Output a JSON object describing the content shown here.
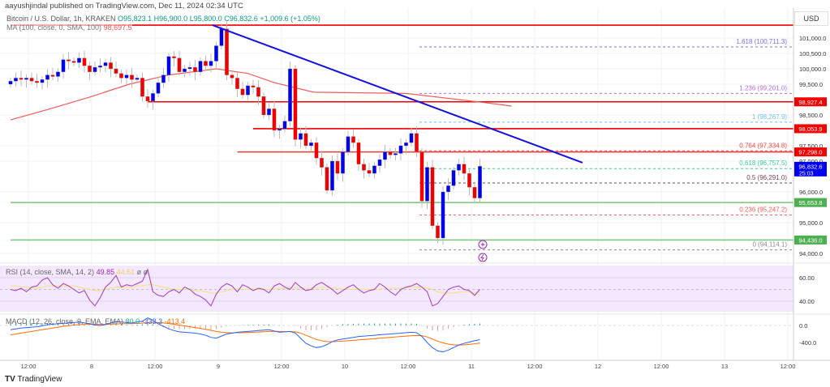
{
  "header": {
    "published": "aayushjindal published on TradingView.com, Dec 11, 2024 02:34 UTC"
  },
  "legend": {
    "symbol": "Bitcoin / U.S. Dollar, 1h, KRAKEN",
    "open": "O95,823.1",
    "high": "H96,900.0",
    "low": "L95,800.0",
    "close": "C96,832.6",
    "change": "+1,009.6 (+1.05%)",
    "ma_label": "MA (100, close, 0, SMA, 100)",
    "ma_value": "98,697.5"
  },
  "price_axis": {
    "currency": "USD",
    "ticks": [
      "101,000.0",
      "100,500.0",
      "100,000.0",
      "99,500.0",
      "98,500.0",
      "97,500.0",
      "97,000.0",
      "96,000.0",
      "95,000.0",
      "94,000.0"
    ],
    "tick_values": [
      101000,
      100500,
      100000,
      99500,
      98500,
      97500,
      97000,
      96000,
      95000,
      94000
    ],
    "tags": [
      {
        "text": "98,927.4",
        "value": 98927.4,
        "color": "#f20000"
      },
      {
        "text": "98,053.9",
        "value": 98053.9,
        "color": "#f20000"
      },
      {
        "text": "97,298.0",
        "value": 97298.0,
        "color": "#f20000"
      },
      {
        "text": "96,832.6",
        "value": 96832.6,
        "color": "#0000f0",
        "sub": "25:03"
      },
      {
        "text": "95,653.8",
        "value": 95653.8,
        "color": "#4caf50"
      },
      {
        "text": "94,436.0",
        "value": 94436.0,
        "color": "#4caf50"
      }
    ]
  },
  "fib_levels": [
    {
      "text": "1.618 (100,711.3)",
      "value": 100711.3,
      "color": "#7b6fe0"
    },
    {
      "text": "1.236 (99,201.0)",
      "value": 99201.0,
      "color": "#b36be0"
    },
    {
      "text": "1 (98,267.9)",
      "value": 98267.9,
      "color": "#6fbfe8"
    },
    {
      "text": "0.764 (97,334.8)",
      "value": 97334.8,
      "color": "#f04545"
    },
    {
      "text": "0.618 (96,757.5)",
      "value": 96757.5,
      "color": "#2fcf96"
    },
    {
      "text": "0.5 (96,291.0)",
      "value": 96291.0,
      "color": "#7a4556"
    },
    {
      "text": "0.236 (95,247.2)",
      "value": 95247.2,
      "color": "#f05a5a"
    },
    {
      "text": "0 (94,114.1)",
      "value": 94114.1,
      "color": "#888888"
    }
  ],
  "time_axis": [
    "12:00",
    "8",
    "12:00",
    "9",
    "12:00",
    "10",
    "12:00",
    "11",
    "12:00",
    "12",
    "12:00",
    "13",
    "12:00"
  ],
  "rsi": {
    "label": "RSI (14, close, SMA, 14, 2)",
    "value": "49.85",
    "sma": "44.61",
    "extra": "ø ø",
    "ticks": [
      "60.00",
      "40.00"
    ],
    "values": [
      50,
      49,
      51,
      48,
      52,
      53,
      58,
      60,
      54,
      51,
      55,
      53,
      50,
      47,
      49,
      41,
      36,
      43,
      52,
      56,
      62,
      52,
      54,
      53,
      55,
      57,
      67,
      48,
      45,
      44,
      48,
      50,
      47,
      52,
      50,
      46,
      44,
      41,
      36,
      46,
      52,
      55,
      53,
      48,
      54,
      52,
      49,
      51,
      50,
      47,
      53,
      55,
      52,
      50,
      56,
      52,
      49,
      50,
      54,
      56,
      53,
      50,
      46,
      49,
      52,
      54,
      50,
      47,
      49,
      50,
      55,
      52,
      48,
      45,
      50,
      52,
      53,
      55,
      52,
      48,
      36,
      38,
      44,
      50,
      52,
      53,
      50,
      49,
      45,
      50
    ],
    "sma_values": [
      53,
      53,
      52,
      52,
      51,
      51,
      52,
      53,
      53,
      53,
      53,
      53,
      53,
      52,
      51,
      50,
      49,
      49,
      50,
      51,
      52,
      52,
      52,
      52,
      53,
      53,
      54,
      54,
      53,
      52,
      51,
      50,
      50,
      50,
      50,
      49,
      49,
      48,
      47,
      47,
      48,
      49,
      50,
      50,
      50,
      50,
      50,
      50,
      50,
      50,
      50,
      51,
      51,
      51,
      51,
      51,
      51,
      51,
      51,
      52,
      52,
      51,
      51,
      50,
      50,
      50,
      50,
      50,
      50,
      50,
      50,
      51,
      51,
      51,
      51,
      51,
      52,
      52,
      52,
      51,
      50,
      48,
      47,
      47,
      47,
      48,
      48,
      48,
      47,
      45
    ]
  },
  "macd": {
    "label": "MACD (12, 26, close, 9, EMA, EMA)",
    "hist": "80.0",
    "macd": "-333.3",
    "signal": "-413.4",
    "ticks": [
      "0.0",
      "-400.0"
    ],
    "macd_values": [
      -100,
      -80,
      -60,
      -50,
      -40,
      -30,
      -10,
      20,
      30,
      40,
      50,
      60,
      70,
      80,
      60,
      40,
      10,
      0,
      20,
      60,
      90,
      80,
      70,
      60,
      80,
      100,
      180,
      120,
      40,
      -20,
      -80,
      -120,
      -150,
      -160,
      -170,
      -180,
      -200,
      -230,
      -280,
      -300,
      -250,
      -200,
      -180,
      -160,
      -150,
      -140,
      -130,
      -120,
      -110,
      -100,
      -130,
      -160,
      -150,
      -140,
      -180,
      -300,
      -420,
      -480,
      -520,
      -500,
      -450,
      -380,
      -340,
      -320,
      -300,
      -280,
      -260,
      -250,
      -240,
      -230,
      -220,
      -210,
      -200,
      -190,
      -180,
      -170,
      -160,
      -170,
      -260,
      -400,
      -520,
      -600,
      -620,
      -580,
      -520,
      -460,
      -420,
      -390,
      -360,
      -333
    ],
    "signal_values": [
      -220,
      -200,
      -180,
      -160,
      -140,
      -120,
      -100,
      -80,
      -60,
      -40,
      -20,
      -5,
      10,
      20,
      25,
      28,
      28,
      26,
      26,
      30,
      35,
      40,
      42,
      44,
      48,
      55,
      70,
      75,
      70,
      60,
      45,
      28,
      10,
      -10,
      -30,
      -50,
      -70,
      -90,
      -115,
      -140,
      -160,
      -170,
      -172,
      -172,
      -170,
      -165,
      -160,
      -155,
      -148,
      -140,
      -138,
      -140,
      -142,
      -142,
      -150,
      -180,
      -230,
      -280,
      -330,
      -360,
      -380,
      -380,
      -375,
      -368,
      -360,
      -350,
      -340,
      -330,
      -320,
      -310,
      -300,
      -290,
      -280,
      -270,
      -260,
      -250,
      -240,
      -235,
      -240,
      -270,
      -320,
      -370,
      -410,
      -440,
      -455,
      -460,
      -455,
      -445,
      -430,
      -413
    ]
  },
  "branding": {
    "logo": "TV",
    "name": "TradingView"
  },
  "chart_data": {
    "type": "candlestick",
    "title": "Bitcoin / U.S. Dollar, 1h, KRAKEN",
    "ylim": [
      93800,
      101600
    ],
    "closes": [
      99600,
      99700,
      99650,
      99700,
      99600,
      99550,
      99650,
      99800,
      99750,
      99900,
      100300,
      100250,
      100200,
      100350,
      100100,
      99900,
      100050,
      100100,
      100200,
      100000,
      99850,
      99700,
      99800,
      99650,
      99700,
      99100,
      98950,
      99200,
      99550,
      99800,
      100400,
      100350,
      99900,
      100000,
      100050,
      99900,
      100250,
      100100,
      100250,
      100750,
      101300,
      99800,
      99700,
      99350,
      99150,
      99450,
      99400,
      99100,
      98500,
      98700,
      98000,
      98050,
      98300,
      100000,
      97700,
      97900,
      97500,
      97600,
      97100,
      96800,
      96050,
      97000,
      96600,
      97300,
      97800,
      97600,
      96900,
      96700,
      96600,
      96850,
      97050,
      97300,
      97200,
      97250,
      97500,
      97600,
      97900,
      97300,
      95700,
      96800,
      94900,
      94500,
      96000,
      96200,
      96700,
      96900,
      96600,
      96150,
      95800,
      96832.6
    ],
    "first_open": 99500,
    "ma100": [
      [
        0,
        98340
      ],
      [
        15,
        98700
      ],
      [
        30,
        99080
      ],
      [
        45,
        99500
      ],
      [
        60,
        99800
      ],
      [
        78,
        100000
      ],
      [
        90,
        99850
      ],
      [
        100,
        99550
      ],
      [
        115,
        99240
      ],
      [
        150,
        99200
      ],
      [
        180,
        98900
      ],
      [
        190,
        98790
      ]
    ],
    "horizontal_lines": [
      {
        "value": 101420,
        "color": "#f20000",
        "from": 0
      },
      {
        "value": 98927.4,
        "color": "#f20000",
        "from": 26
      },
      {
        "value": 98053.9,
        "color": "#f20000",
        "from": 46
      },
      {
        "value": 97298.0,
        "color": "#f24545",
        "from": 43
      },
      {
        "value": 95653.8,
        "color": "#81c784",
        "from": 0
      },
      {
        "value": 94436.0,
        "color": "#81c784",
        "from": 0
      }
    ],
    "trendline": {
      "from": [
        38,
        101420
      ],
      "to": [
        108,
        96950
      ],
      "color": "#1010e0"
    }
  }
}
